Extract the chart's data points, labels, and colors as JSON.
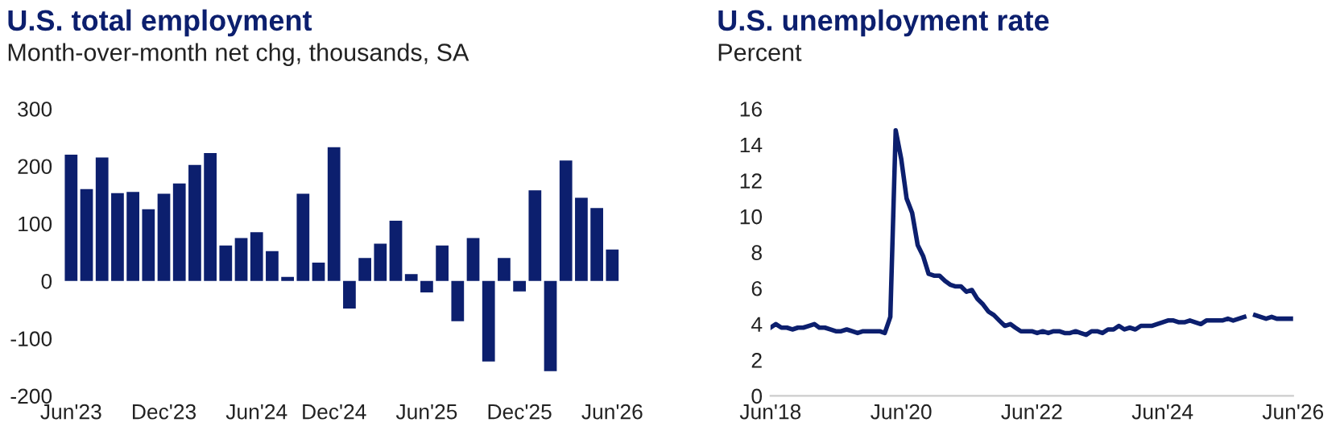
{
  "chart_data": [
    {
      "type": "bar",
      "title": "U.S. total employment",
      "subtitle": "Month-over-month net chg, thousands, SA",
      "categories": [
        "Jun'23",
        null,
        null,
        null,
        null,
        null,
        "Dec'23",
        null,
        null,
        null,
        null,
        null,
        "Jun'24",
        null,
        null,
        null,
        null,
        "Dec'24",
        null,
        null,
        null,
        null,
        null,
        "Jun'25",
        null,
        null,
        null,
        null,
        null,
        "Dec'25",
        null,
        null,
        null,
        null,
        null,
        "Jun'26"
      ],
      "series": [
        {
          "color": "#0c1f6e",
          "values": [
            220,
            160,
            215,
            153,
            155,
            125,
            152,
            170,
            202,
            223,
            62,
            75,
            85,
            52,
            7,
            152,
            32,
            233,
            -48,
            40,
            65,
            105,
            12,
            -20,
            62,
            -70,
            75,
            -140,
            40,
            -18,
            158,
            -157,
            210,
            145,
            127,
            55
          ]
        }
      ],
      "ylim": [
        -200,
        300
      ],
      "yticks": [
        -200,
        -100,
        0,
        100,
        200,
        300
      ],
      "grid": false,
      "legend": false
    },
    {
      "type": "line",
      "title": "U.S. unemployment rate",
      "subtitle": "Percent",
      "x": [
        "2018-06",
        "2018-07",
        "2018-08",
        "2018-09",
        "2018-10",
        "2018-11",
        "2018-12",
        "2019-01",
        "2019-02",
        "2019-03",
        "2019-04",
        "2019-05",
        "2019-06",
        "2019-07",
        "2019-08",
        "2019-09",
        "2019-10",
        "2019-11",
        "2019-12",
        "2020-01",
        "2020-02",
        "2020-03",
        "2020-04",
        "2020-05",
        "2020-06",
        "2020-07",
        "2020-08",
        "2020-09",
        "2020-10",
        "2020-11",
        "2020-12",
        "2021-01",
        "2021-02",
        "2021-03",
        "2021-04",
        "2021-05",
        "2021-06",
        "2021-07",
        "2021-08",
        "2021-09",
        "2021-10",
        "2021-11",
        "2021-12",
        "2022-01",
        "2022-02",
        "2022-03",
        "2022-04",
        "2022-05",
        "2022-06",
        "2022-07",
        "2022-08",
        "2022-09",
        "2022-10",
        "2022-11",
        "2022-12",
        "2023-01",
        "2023-02",
        "2023-03",
        "2023-04",
        "2023-05",
        "2023-06",
        "2023-07",
        "2023-08",
        "2023-09",
        "2023-10",
        "2023-11",
        "2023-12",
        "2024-01",
        "2024-02",
        "2024-03",
        "2024-04",
        "2024-05",
        "2024-06",
        "2024-07",
        "2024-08",
        "2024-09",
        "2024-10",
        "2024-11",
        "2024-12",
        "2025-01",
        "2025-02",
        "2025-03",
        "2025-04",
        "2025-05",
        "2025-06",
        "2025-07",
        "2025-08",
        "2025-09",
        "2025-10",
        "2025-11",
        "2025-12",
        "2026-01",
        "2026-02",
        "2026-03",
        "2026-04",
        "2026-05",
        "2026-06"
      ],
      "series": [
        {
          "color": "#0c1f6e",
          "values": [
            3.8,
            4.0,
            3.8,
            3.8,
            3.7,
            3.8,
            3.8,
            3.9,
            4.0,
            3.8,
            3.8,
            3.7,
            3.6,
            3.6,
            3.7,
            3.6,
            3.5,
            3.6,
            3.6,
            3.6,
            3.6,
            3.5,
            4.4,
            14.8,
            13.2,
            11.0,
            10.2,
            8.4,
            7.8,
            6.8,
            6.7,
            6.7,
            6.4,
            6.2,
            6.1,
            6.1,
            5.8,
            5.9,
            5.4,
            5.1,
            4.7,
            4.5,
            4.2,
            3.9,
            4.0,
            3.8,
            3.6,
            3.6,
            3.6,
            3.5,
            3.6,
            3.5,
            3.6,
            3.6,
            3.5,
            3.5,
            3.6,
            3.5,
            3.4,
            3.6,
            3.6,
            3.5,
            3.7,
            3.7,
            3.9,
            3.7,
            3.8,
            3.7,
            3.9,
            3.9,
            3.9,
            4.0,
            4.1,
            4.2,
            4.2,
            4.1,
            4.1,
            4.2,
            4.1,
            4.0,
            4.2,
            4.2,
            4.2,
            4.2,
            4.3,
            4.2,
            4.3,
            4.4,
            null,
            4.5,
            4.4,
            4.3,
            4.4,
            4.3,
            4.3,
            4.3,
            4.3
          ]
        }
      ],
      "xlim": [
        "2018-06",
        "2026-06"
      ],
      "xticks": [
        {
          "value": "2018-06",
          "label": "Jun'18"
        },
        {
          "value": "2020-06",
          "label": "Jun'20"
        },
        {
          "value": "2022-06",
          "label": "Jun'22"
        },
        {
          "value": "2024-06",
          "label": "Jun'24"
        },
        {
          "value": "2026-06",
          "label": "Jun'26"
        }
      ],
      "ylim": [
        0,
        16
      ],
      "yticks": [
        0,
        2,
        4,
        6,
        8,
        10,
        12,
        14,
        16
      ],
      "grid": false,
      "legend": false
    }
  ]
}
